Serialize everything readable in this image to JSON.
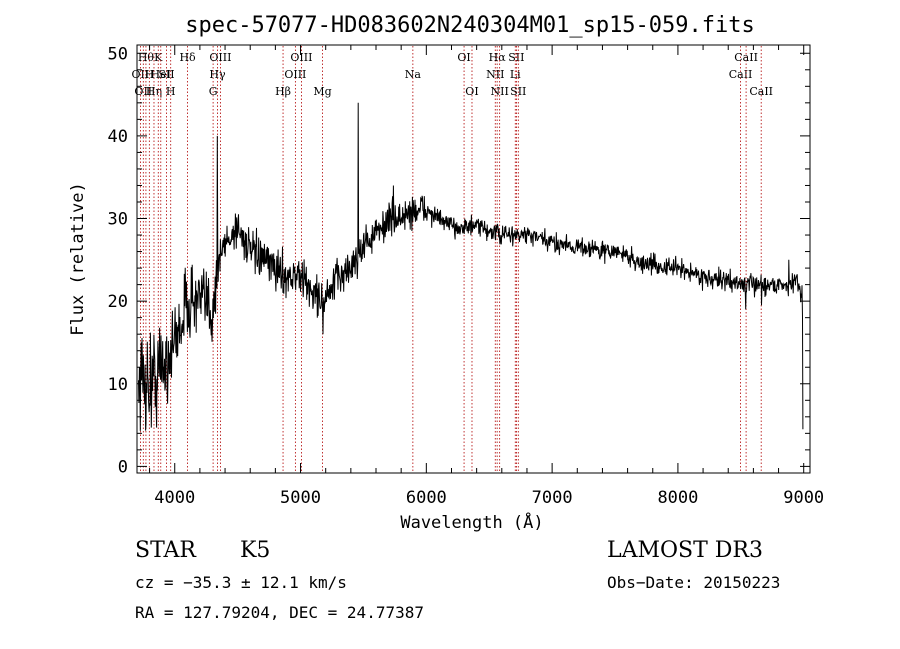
{
  "chart_data": {
    "type": "line",
    "title": "spec-57077-HD083602N240304M01_sp15-059.fits",
    "xlabel": "Wavelength (Å)",
    "ylabel": "Flux (relative)",
    "xlim": [
      3700,
      9050
    ],
    "ylim": [
      -0.8,
      51
    ],
    "x_ticks": [
      {
        "value": 4000,
        "label": "4000"
      },
      {
        "value": 5000,
        "label": "5000"
      },
      {
        "value": 6000,
        "label": "6000"
      },
      {
        "value": 7000,
        "label": "7000"
      },
      {
        "value": 8000,
        "label": "8000"
      },
      {
        "value": 9000,
        "label": "9000"
      }
    ],
    "y_ticks": [
      {
        "value": 0,
        "label": "0"
      },
      {
        "value": 10,
        "label": "10"
      },
      {
        "value": 20,
        "label": "20"
      },
      {
        "value": 30,
        "label": "30"
      },
      {
        "value": 40,
        "label": "40"
      },
      {
        "value": 50,
        "label": "50"
      }
    ],
    "spectrum_anchors": [
      [
        3700,
        11
      ],
      [
        3800,
        10
      ],
      [
        3900,
        12
      ],
      [
        4000,
        15
      ],
      [
        4100,
        20
      ],
      [
        4200,
        20
      ],
      [
        4300,
        19
      ],
      [
        4350,
        25
      ],
      [
        4400,
        27
      ],
      [
        4500,
        29
      ],
      [
        4600,
        26
      ],
      [
        4700,
        25
      ],
      [
        4800,
        24
      ],
      [
        4900,
        23
      ],
      [
        5000,
        23
      ],
      [
        5100,
        21
      ],
      [
        5200,
        20
      ],
      [
        5300,
        23
      ],
      [
        5400,
        24
      ],
      [
        5500,
        27
      ],
      [
        5600,
        28
      ],
      [
        5700,
        30
      ],
      [
        5800,
        30
      ],
      [
        5900,
        31
      ],
      [
        6000,
        31
      ],
      [
        6100,
        30
      ],
      [
        6200,
        29
      ],
      [
        6300,
        29
      ],
      [
        6400,
        29
      ],
      [
        6500,
        28.5
      ],
      [
        6600,
        28
      ],
      [
        6700,
        28
      ],
      [
        6800,
        28
      ],
      [
        6900,
        27.5
      ],
      [
        7000,
        27
      ],
      [
        7100,
        27
      ],
      [
        7200,
        26.5
      ],
      [
        7300,
        26.5
      ],
      [
        7400,
        26
      ],
      [
        7500,
        26
      ],
      [
        7600,
        25.5
      ],
      [
        7700,
        24.5
      ],
      [
        7800,
        24.5
      ],
      [
        7900,
        24
      ],
      [
        8000,
        24
      ],
      [
        8100,
        23.5
      ],
      [
        8200,
        23
      ],
      [
        8300,
        22.5
      ],
      [
        8400,
        22.5
      ],
      [
        8500,
        22
      ],
      [
        8600,
        22
      ],
      [
        8700,
        22
      ],
      [
        8800,
        22
      ],
      [
        8900,
        22
      ],
      [
        8950,
        22.5
      ],
      [
        9000,
        20
      ]
    ],
    "spectrum_features": [
      {
        "x": 4340,
        "y": 40
      },
      {
        "x": 4350,
        "y": 25
      },
      {
        "x": 4860,
        "y": 21
      },
      {
        "x": 5180,
        "y": 16
      },
      {
        "x": 5460,
        "y": 44
      },
      {
        "x": 5740,
        "y": 34
      },
      {
        "x": 8540,
        "y": 19
      },
      {
        "x": 8665,
        "y": 19.5
      },
      {
        "x": 8880,
        "y": 25
      },
      {
        "x": 8990,
        "y": 18
      },
      {
        "x": 9000,
        "y": 4.5
      }
    ],
    "line_markers": [
      {
        "x": 3727,
        "label": "OII",
        "row": 2
      },
      {
        "x": 3750,
        "label": "OII",
        "row": 3
      },
      {
        "x": 3771,
        "label": "Hθ",
        "row": 1
      },
      {
        "x": 3798,
        "label": "H",
        "row": 2
      },
      {
        "x": 3835,
        "label": "Hη",
        "row": 3
      },
      {
        "x": 3869,
        "label": "K",
        "row": 1
      },
      {
        "x": 3889,
        "label": "HeI",
        "row": 2
      },
      {
        "x": 3934,
        "label": "SII",
        "row": 2
      },
      {
        "x": 3968,
        "label": "H",
        "row": 3
      },
      {
        "x": 4102,
        "label": "Hδ",
        "row": 1
      },
      {
        "x": 4305,
        "label": "G",
        "row": 3
      },
      {
        "x": 4340,
        "label": "Hγ",
        "row": 2
      },
      {
        "x": 4363,
        "label": "OIII",
        "row": 1
      },
      {
        "x": 4861,
        "label": "Hβ",
        "row": 3
      },
      {
        "x": 4959,
        "label": "OIII",
        "row": 2
      },
      {
        "x": 5007,
        "label": "OIII",
        "row": 1
      },
      {
        "x": 5175,
        "label": "Mg",
        "row": 3
      },
      {
        "x": 5893,
        "label": "Na",
        "row": 2
      },
      {
        "x": 6300,
        "label": "OI",
        "row": 1
      },
      {
        "x": 6363,
        "label": "OI",
        "row": 3
      },
      {
        "x": 6548,
        "label": "NII",
        "row": 2
      },
      {
        "x": 6563,
        "label": "Hα",
        "row": 1
      },
      {
        "x": 6583,
        "label": "NII",
        "row": 3
      },
      {
        "x": 6707,
        "label": "Li",
        "row": 2
      },
      {
        "x": 6716,
        "label": "SII",
        "row": 1
      },
      {
        "x": 6731,
        "label": "SII",
        "row": 3
      },
      {
        "x": 8498,
        "label": "CaII",
        "row": 2
      },
      {
        "x": 8542,
        "label": "CaII",
        "row": 1
      },
      {
        "x": 8662,
        "label": "CaII",
        "row": 3
      }
    ]
  },
  "info": {
    "object_class": "STAR",
    "subclass": "K5",
    "survey": "LAMOST DR3",
    "cz": "cz = −35.3 ± 12.1 km/s",
    "obs_date": "Obs−Date: 20150223",
    "coords": "RA = 127.79204, DEC =  24.77387"
  },
  "colors": {
    "spectrum": "#000000",
    "marker_line": "#b00000",
    "axis": "#000000"
  }
}
